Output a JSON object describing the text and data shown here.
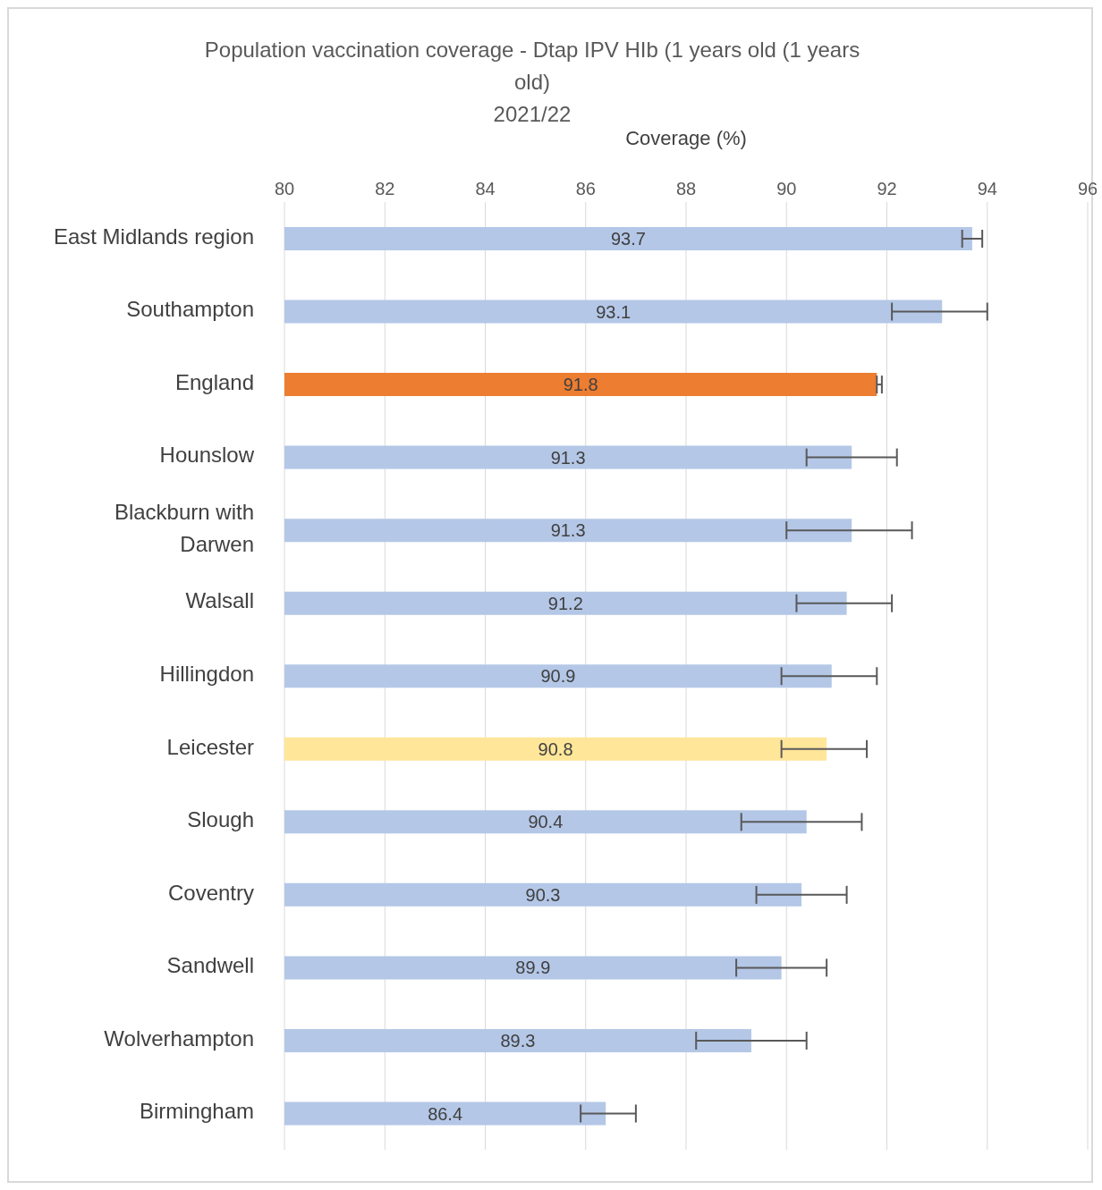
{
  "chart_data": {
    "type": "bar",
    "orientation": "horizontal",
    "title": "Population vaccination coverage - Dtap IPV HIb (1 years old (1 years old)",
    "subtitle": "2021/22",
    "xlabel": "Coverage (%)",
    "categories": [
      "East Midlands region",
      "Southampton",
      "England",
      "Hounslow",
      "Blackburn with Darwen",
      "Walsall",
      "Hillingdon",
      "Leicester",
      "Slough",
      "Coventry",
      "Sandwell",
      "Wolverhampton",
      "Birmingham"
    ],
    "values": [
      93.7,
      93.1,
      91.8,
      91.3,
      91.3,
      91.2,
      90.9,
      90.8,
      90.4,
      90.3,
      89.9,
      89.3,
      86.4
    ],
    "colors": [
      "#b4c7e7",
      "#b4c7e7",
      "#ed7d31",
      "#b4c7e7",
      "#b4c7e7",
      "#b4c7e7",
      "#b4c7e7",
      "#ffe699",
      "#b4c7e7",
      "#b4c7e7",
      "#b4c7e7",
      "#b4c7e7",
      "#b4c7e7"
    ],
    "errors": [
      [
        93.5,
        93.9
      ],
      [
        92.1,
        94.0
      ],
      [
        91.8,
        91.9
      ],
      [
        90.4,
        92.2
      ],
      [
        90.0,
        92.5
      ],
      [
        90.2,
        92.1
      ],
      [
        89.9,
        91.8
      ],
      [
        89.9,
        91.6
      ],
      [
        89.1,
        91.5
      ],
      [
        89.4,
        91.2
      ],
      [
        89.0,
        90.8
      ],
      [
        88.2,
        90.4
      ],
      [
        85.9,
        87.0
      ]
    ],
    "xlim": [
      80,
      96
    ],
    "xticks": [
      80,
      82,
      84,
      86,
      88,
      90,
      92,
      94,
      96
    ],
    "grid": "x",
    "data_labels": true
  }
}
